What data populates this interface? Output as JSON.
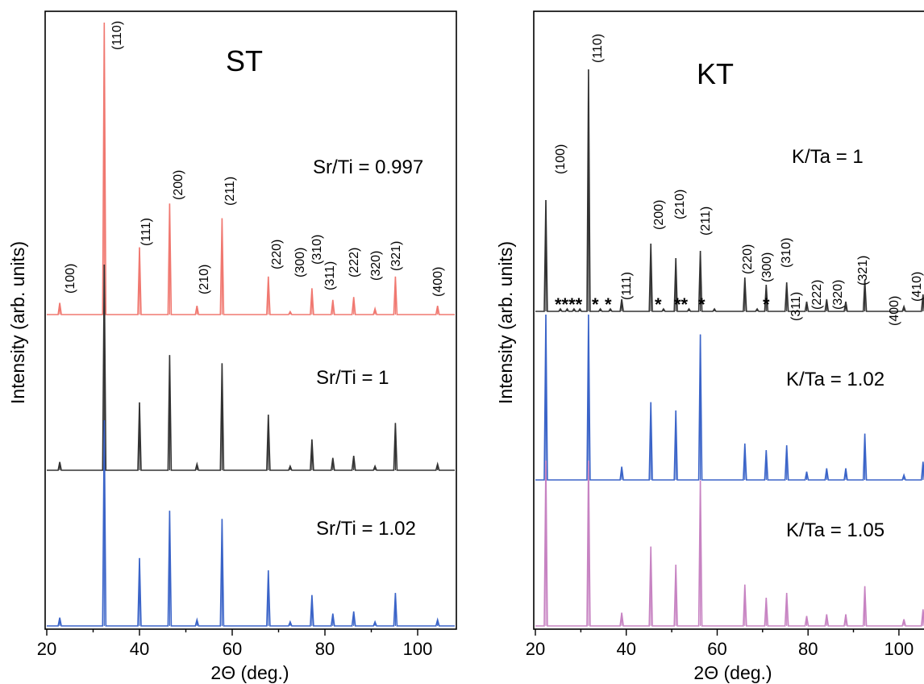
{
  "chart_data": [
    {
      "type": "line",
      "title": "ST",
      "xlabel": "2Θ (deg.)",
      "ylabel": "Intensity (arb. units)",
      "xlim": [
        20,
        108
      ],
      "x_ticks": [
        "20",
        "40",
        "60",
        "80",
        "100"
      ],
      "grid": false,
      "series": [
        {
          "name": "Sr/Ti = 0.997",
          "color": "#f07870",
          "label": "Sr/Ti = 0.997",
          "peaks": [
            [
              22.8,
              0.04
            ],
            [
              32.4,
              1.0
            ],
            [
              40.0,
              0.23
            ],
            [
              46.5,
              0.38
            ],
            [
              52.4,
              0.03
            ],
            [
              57.8,
              0.33
            ],
            [
              67.8,
              0.13
            ],
            [
              72.5,
              0.01
            ],
            [
              77.2,
              0.09
            ],
            [
              81.7,
              0.05
            ],
            [
              86.2,
              0.06
            ],
            [
              90.8,
              0.02
            ],
            [
              95.2,
              0.13
            ],
            [
              104.3,
              0.03
            ]
          ]
        },
        {
          "name": "Sr/Ti = 1",
          "color": "#333333",
          "label": "Sr/Ti = 1",
          "peaks": [
            [
              22.8,
              0.04
            ],
            [
              32.4,
              1.0
            ],
            [
              40.0,
              0.33
            ],
            [
              46.5,
              0.56
            ],
            [
              52.4,
              0.03
            ],
            [
              57.8,
              0.52
            ],
            [
              67.8,
              0.27
            ],
            [
              72.5,
              0.02
            ],
            [
              77.2,
              0.15
            ],
            [
              81.7,
              0.06
            ],
            [
              86.2,
              0.07
            ],
            [
              90.8,
              0.02
            ],
            [
              95.2,
              0.23
            ],
            [
              104.3,
              0.03
            ]
          ]
        },
        {
          "name": "Sr/Ti = 1.02",
          "color": "#3b64c8",
          "label": "Sr/Ti = 1.02",
          "peaks": [
            [
              22.8,
              0.04
            ],
            [
              32.4,
              1.0
            ],
            [
              40.0,
              0.33
            ],
            [
              46.5,
              0.56
            ],
            [
              52.4,
              0.03
            ],
            [
              57.8,
              0.52
            ],
            [
              67.8,
              0.27
            ],
            [
              72.5,
              0.02
            ],
            [
              77.2,
              0.15
            ],
            [
              81.7,
              0.06
            ],
            [
              86.2,
              0.07
            ],
            [
              90.8,
              0.02
            ],
            [
              95.2,
              0.16
            ],
            [
              104.3,
              0.03
            ]
          ]
        }
      ],
      "annotations": [
        "(100)",
        "(110)",
        "(111)",
        "(200)",
        "(210)",
        "(211)",
        "(220)",
        "(300)",
        "(310)",
        "(311)",
        "(222)",
        "(320)",
        "(321)",
        "(400)"
      ]
    },
    {
      "type": "line",
      "title": "KT",
      "xlabel": "2Θ (deg.)",
      "ylabel": "Intensity (arb. units)",
      "xlim": [
        20,
        108
      ],
      "x_ticks": [
        "20",
        "40",
        "60",
        "80",
        "100"
      ],
      "grid": false,
      "series": [
        {
          "name": "K/Ta = 1",
          "color": "#333333",
          "label": "K/Ta = 1",
          "peaks": [
            [
              22.3,
              0.46
            ],
            [
              25.5,
              0.01
            ],
            [
              27.0,
              0.01
            ],
            [
              28.5,
              0.01
            ],
            [
              29.8,
              0.01
            ],
            [
              31.7,
              1.0
            ],
            [
              34.3,
              0.01
            ],
            [
              36.5,
              0.01
            ],
            [
              39.0,
              0.05
            ],
            [
              45.4,
              0.28
            ],
            [
              48.2,
              0.01
            ],
            [
              50.9,
              0.22
            ],
            [
              53.8,
              0.01
            ],
            [
              56.3,
              0.25
            ],
            [
              59.4,
              0.01
            ],
            [
              66.1,
              0.14
            ],
            [
              68.8,
              0.01
            ],
            [
              70.8,
              0.11
            ],
            [
              75.3,
              0.12
            ],
            [
              79.7,
              0.04
            ],
            [
              84.1,
              0.05
            ],
            [
              88.3,
              0.04
            ],
            [
              92.5,
              0.13
            ],
            [
              101.1,
              0.02
            ],
            [
              105.3,
              0.07
            ]
          ]
        },
        {
          "name": "K/Ta = 1.02",
          "color": "#3b64c8",
          "label": "K/Ta = 1.02",
          "peaks": [
            [
              22.3,
              1.0
            ],
            [
              31.7,
              1.0
            ],
            [
              39.0,
              0.08
            ],
            [
              45.4,
              0.47
            ],
            [
              50.9,
              0.42
            ],
            [
              56.3,
              0.88
            ],
            [
              66.1,
              0.22
            ],
            [
              70.8,
              0.18
            ],
            [
              75.3,
              0.21
            ],
            [
              79.7,
              0.05
            ],
            [
              84.1,
              0.07
            ],
            [
              88.3,
              0.07
            ],
            [
              92.5,
              0.28
            ],
            [
              101.1,
              0.03
            ],
            [
              105.3,
              0.11
            ]
          ]
        },
        {
          "name": "K/Ta = 1.05",
          "color": "#c783c2",
          "label": "K/Ta = 1.05",
          "peaks": [
            [
              22.3,
              1.0
            ],
            [
              31.7,
              1.0
            ],
            [
              39.0,
              0.08
            ],
            [
              45.4,
              0.48
            ],
            [
              50.9,
              0.37
            ],
            [
              56.3,
              0.88
            ],
            [
              66.1,
              0.25
            ],
            [
              70.8,
              0.17
            ],
            [
              75.3,
              0.2
            ],
            [
              79.7,
              0.06
            ],
            [
              84.1,
              0.07
            ],
            [
              88.3,
              0.07
            ],
            [
              92.5,
              0.24
            ],
            [
              101.1,
              0.04
            ],
            [
              105.3,
              0.1
            ]
          ]
        }
      ],
      "annotations": [
        "(100)",
        "(110)",
        "(111)",
        "(200)",
        "(210)",
        "(211)",
        "(220)",
        "(300)",
        "(310)",
        "(311)",
        "(222)",
        "(320)",
        "(321)",
        "(400)",
        "(410)"
      ],
      "impurity_marks": [
        "****",
        "*",
        "*",
        "*",
        "**",
        "*",
        "*"
      ]
    }
  ]
}
